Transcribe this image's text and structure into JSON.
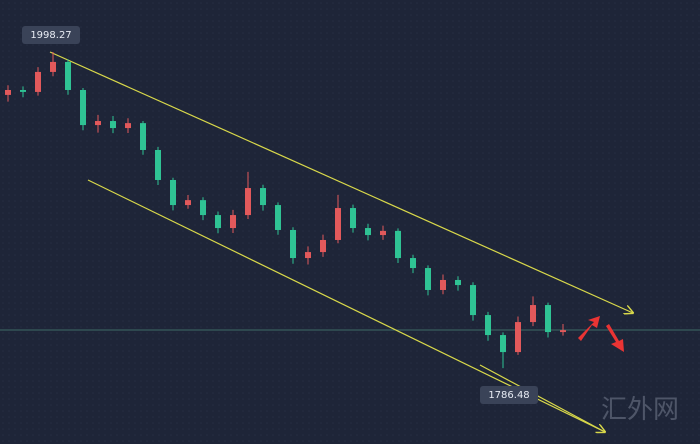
{
  "chart_data": {
    "type": "candlestick",
    "categories": [
      null,
      null,
      null,
      null,
      null,
      null,
      null,
      null,
      null,
      null,
      null,
      null,
      null,
      null,
      null,
      null,
      null,
      null,
      null,
      null,
      null,
      null,
      null,
      null,
      null,
      null,
      null,
      null,
      null,
      null,
      null,
      null,
      null,
      null,
      null,
      null,
      null,
      null
    ],
    "open": [
      1969.5,
      1972.8,
      1971.5,
      1984.9,
      1991.6,
      1972.8,
      1949.3,
      1952.0,
      1947.3,
      1950.6,
      1932.6,
      1912.5,
      1895.7,
      1899.0,
      1889.0,
      1880.3,
      1889.0,
      1907.1,
      1895.7,
      1879.0,
      1860.2,
      1864.2,
      1872.3,
      1893.7,
      1880.3,
      1875.6,
      1878.4,
      1860.2,
      1853.5,
      1838.8,
      1845.5,
      1842.1,
      1822.0,
      1808.6,
      1797.2,
      1817.3,
      1828.7,
      1810.6
    ],
    "close": [
      1972.8,
      1971.5,
      1984.9,
      1991.6,
      1972.8,
      1949.3,
      1952.0,
      1947.3,
      1950.6,
      1932.6,
      1912.5,
      1895.7,
      1899.0,
      1889.0,
      1880.3,
      1889.0,
      1907.1,
      1895.7,
      1879.0,
      1860.2,
      1864.2,
      1872.3,
      1893.7,
      1880.3,
      1875.6,
      1878.4,
      1860.2,
      1853.5,
      1838.8,
      1845.5,
      1842.1,
      1822.0,
      1808.6,
      1797.2,
      1817.3,
      1828.7,
      1810.6,
      1811.9
    ],
    "high": [
      1976.0,
      1975.2,
      1988.1,
      1998.27,
      1993.4,
      1974.1,
      1956.1,
      1955.4,
      1953.9,
      1952.0,
      1934.7,
      1914.0,
      1902.4,
      1900.9,
      1891.4,
      1892.5,
      1917.9,
      1909.3,
      1897.5,
      1880.8,
      1868.0,
      1875.9,
      1902.5,
      1896.0,
      1883.2,
      1881.9,
      1880.1,
      1862.4,
      1855.3,
      1849.2,
      1848.0,
      1844.0,
      1824.1,
      1810.4,
      1821.0,
      1834.5,
      1830.3,
      1816.0
    ],
    "low": [
      1965.0,
      1967.9,
      1969.0,
      1982.0,
      1969.6,
      1945.8,
      1944.2,
      1943.9,
      1944.0,
      1929.4,
      1909.1,
      1892.1,
      1893.2,
      1885.6,
      1876.8,
      1877.0,
      1886.4,
      1892.0,
      1875.8,
      1856.4,
      1855.9,
      1861.0,
      1870.1,
      1877.2,
      1872.0,
      1872.4,
      1856.9,
      1850.1,
      1835.2,
      1835.9,
      1838.4,
      1818.3,
      1804.8,
      1786.48,
      1795.3,
      1814.6,
      1807.0,
      1808.2
    ],
    "up_color": "#e2595b",
    "down_color": "#2fc394",
    "ylim": [
      1735.6,
      2033.1
    ],
    "watermark": "汇外网"
  }
}
